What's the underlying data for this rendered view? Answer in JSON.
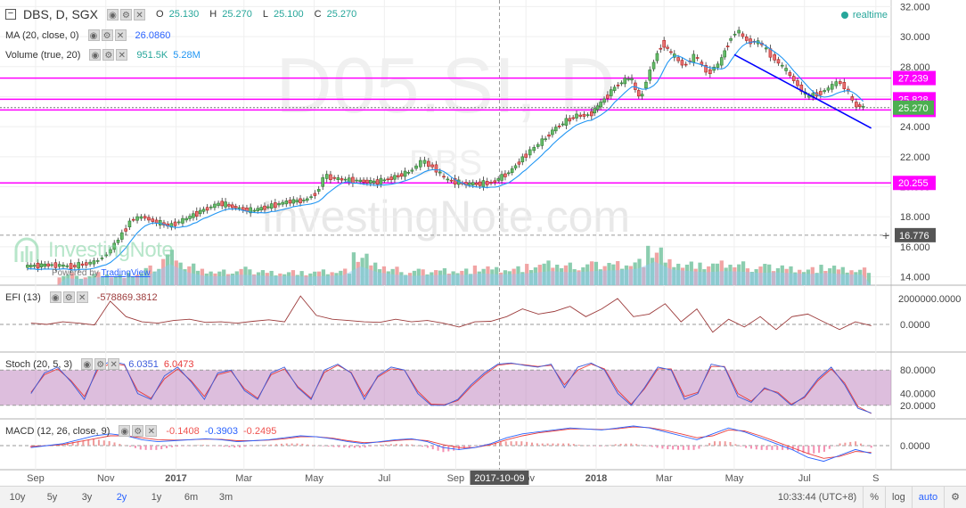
{
  "header": {
    "symbol": "DBS, D, SGX",
    "open_label": "O",
    "open": "25.130",
    "high_label": "H",
    "high": "25.270",
    "low_label": "L",
    "low": "25.100",
    "close_label": "C",
    "close": "25.270",
    "realtime": "realtime"
  },
  "indicators": {
    "ma": {
      "name": "MA (20, close, 0)",
      "value": "26.0860"
    },
    "volume": {
      "name": "Volume (true, 20)",
      "value1": "951.5K",
      "value2": "5.28M"
    },
    "efi": {
      "name": "EFI (13)",
      "value": "-578869.3812"
    },
    "stoch": {
      "name": "Stoch (20, 5, 3)",
      "value1": "6.0351",
      "value2": "6.0473"
    },
    "macd": {
      "name": "MACD (12, 26, close, 9)",
      "value1": "-0.1408",
      "value2": "-0.3903",
      "value3": "-0.2495"
    }
  },
  "watermark": {
    "ticker": "D05.SI, D",
    "company": "DBS",
    "site": "InvestingNote.com",
    "brand": "InvestingNote",
    "powered_by": "Powered by",
    "tradingview": "TradingView"
  },
  "crosshair": {
    "date_label": "2017-10-09",
    "price_label": "16.776"
  },
  "colors": {
    "up": "#26a69a",
    "down": "#ef5350",
    "magenta": "#ff00ff",
    "ma": "#2196f3",
    "trend": "#0000ff",
    "efi": "#9c3b3b",
    "stoch_k": "#3b5bdb",
    "stoch_d": "#e83b3b"
  },
  "chart_data": [
    {
      "type": "candlestick",
      "title": "DBS, D, SGX",
      "y_ticks": [
        "14.000",
        "16.000",
        "18.000",
        "20.000",
        "22.000",
        "24.000",
        "26.000",
        "28.000",
        "30.000",
        "32.000"
      ],
      "ylim": [
        13.8,
        32.2
      ],
      "x_ticks": [
        "Sep",
        "Nov",
        "2017",
        "Mar",
        "May",
        "Jul",
        "Sep",
        "Nov",
        "2018",
        "Mar",
        "May",
        "Jul",
        "S"
      ],
      "price_series": [
        [
          "2016-08-25",
          14.7
        ],
        [
          "2016-09-15",
          14.8
        ],
        [
          "2016-10-05",
          14.7
        ],
        [
          "2016-10-25",
          15.0
        ],
        [
          "2016-11-05",
          15.6
        ],
        [
          "2016-11-15",
          16.6
        ],
        [
          "2016-11-25",
          17.8
        ],
        [
          "2016-12-05",
          18.0
        ],
        [
          "2016-12-15",
          17.7
        ],
        [
          "2016-12-28",
          17.4
        ],
        [
          "2017-01-10",
          17.8
        ],
        [
          "2017-01-25",
          18.4
        ],
        [
          "2017-02-10",
          18.9
        ],
        [
          "2017-02-25",
          18.6
        ],
        [
          "2017-03-10",
          18.4
        ],
        [
          "2017-03-25",
          18.7
        ],
        [
          "2017-04-10",
          19.0
        ],
        [
          "2017-04-25",
          19.1
        ],
        [
          "2017-05-05",
          19.6
        ],
        [
          "2017-05-12",
          20.7
        ],
        [
          "2017-05-25",
          20.5
        ],
        [
          "2017-06-10",
          20.4
        ],
        [
          "2017-06-25",
          20.3
        ],
        [
          "2017-07-10",
          20.6
        ],
        [
          "2017-07-25",
          21.0
        ],
        [
          "2017-08-05",
          21.7
        ],
        [
          "2017-08-15",
          21.3
        ],
        [
          "2017-08-25",
          20.5
        ],
        [
          "2017-09-10",
          20.2
        ],
        [
          "2017-09-25",
          20.2
        ],
        [
          "2017-10-05",
          20.3
        ],
        [
          "2017-10-20",
          21.0
        ],
        [
          "2017-11-01",
          22.0
        ],
        [
          "2017-11-15",
          22.9
        ],
        [
          "2017-11-30",
          24.0
        ],
        [
          "2017-12-15",
          24.7
        ],
        [
          "2017-12-28",
          24.8
        ],
        [
          "2018-01-05",
          25.4
        ],
        [
          "2018-01-20",
          26.7
        ],
        [
          "2018-02-01",
          27.3
        ],
        [
          "2018-02-10",
          25.9
        ],
        [
          "2018-02-20",
          27.9
        ],
        [
          "2018-03-01",
          29.6
        ],
        [
          "2018-03-10",
          28.8
        ],
        [
          "2018-03-20",
          28.1
        ],
        [
          "2018-03-30",
          28.7
        ],
        [
          "2018-04-10",
          27.6
        ],
        [
          "2018-04-20",
          28.2
        ],
        [
          "2018-04-28",
          29.7
        ],
        [
          "2018-05-05",
          30.4
        ],
        [
          "2018-05-15",
          29.7
        ],
        [
          "2018-05-25",
          29.6
        ],
        [
          "2018-06-05",
          28.7
        ],
        [
          "2018-06-15",
          27.9
        ],
        [
          "2018-06-25",
          27.0
        ],
        [
          "2018-07-05",
          26.0
        ],
        [
          "2018-07-15",
          26.2
        ],
        [
          "2018-07-25",
          26.6
        ],
        [
          "2018-08-01",
          27.0
        ],
        [
          "2018-08-08",
          26.6
        ],
        [
          "2018-08-15",
          25.5
        ],
        [
          "2018-08-24",
          25.27
        ]
      ],
      "horizontal_levels": [
        {
          "value": 27.239,
          "label": "27.239"
        },
        {
          "value": 25.828,
          "label": "25.828"
        },
        {
          "value": 25.114,
          "label": "25.114"
        },
        {
          "value": 20.255,
          "label": "20.255"
        }
      ],
      "last_price": {
        "value": 25.27,
        "label": "25.270"
      },
      "trendline": [
        [
          "2018-05-01",
          28.8
        ],
        [
          "2018-08-28",
          23.9
        ]
      ]
    },
    {
      "type": "bar",
      "title": "Volume (true, 20)",
      "values_relative": [
        0.3,
        0.25,
        0.35,
        0.28,
        0.32,
        0.5,
        0.9,
        0.55,
        0.4,
        0.38,
        0.45,
        0.42,
        0.38,
        0.4,
        0.36,
        0.4,
        0.42,
        0.8,
        0.55,
        0.45,
        0.4,
        0.42,
        0.45,
        0.44,
        0.5,
        0.46,
        0.48,
        0.52,
        0.6,
        0.55,
        0.58,
        0.62,
        0.64,
        0.7,
        1.0,
        0.66,
        0.6,
        0.55,
        0.6,
        0.58,
        0.52,
        0.55,
        0.5,
        0.48,
        0.52,
        0.46,
        0.45
      ]
    },
    {
      "type": "line",
      "title": "EFI (13)",
      "y_ticks": [
        "0.0000",
        "2000000.0000"
      ],
      "values": [
        0.05,
        0.0,
        0.1,
        0.05,
        -0.02,
        0.9,
        0.3,
        0.1,
        0.05,
        0.15,
        0.2,
        0.08,
        0.1,
        0.05,
        0.12,
        0.18,
        0.1,
        1.1,
        0.35,
        0.2,
        0.15,
        0.1,
        0.08,
        0.2,
        0.1,
        0.15,
        0.05,
        -0.1,
        0.1,
        0.12,
        0.3,
        0.6,
        0.4,
        0.5,
        0.7,
        0.3,
        0.6,
        1.0,
        0.3,
        0.4,
        0.8,
        0.1,
        0.6,
        -0.3,
        0.2,
        -0.1,
        0.3,
        -0.2,
        0.3,
        0.4,
        0.1,
        -0.2,
        0.1,
        -0.05
      ]
    },
    {
      "type": "line",
      "title": "Stoch (20, 5, 3)",
      "y_ticks": [
        "20.0000",
        "40.0000",
        "80.0000"
      ],
      "ylim": [
        0,
        100
      ],
      "band": [
        20,
        80
      ],
      "k_values": [
        40,
        75,
        85,
        60,
        30,
        85,
        95,
        90,
        40,
        30,
        70,
        85,
        60,
        30,
        75,
        80,
        45,
        30,
        75,
        85,
        50,
        30,
        80,
        90,
        75,
        30,
        70,
        85,
        80,
        40,
        20,
        20,
        30,
        55,
        75,
        90,
        92,
        88,
        85,
        90,
        50,
        85,
        92,
        80,
        40,
        20,
        50,
        85,
        80,
        30,
        40,
        90,
        85,
        35,
        25,
        50,
        40,
        20,
        35,
        65,
        85,
        55,
        15,
        7
      ],
      "d_values": [
        42,
        72,
        82,
        62,
        35,
        80,
        92,
        88,
        45,
        32,
        65,
        82,
        62,
        35,
        72,
        78,
        48,
        32,
        72,
        82,
        52,
        32,
        76,
        88,
        76,
        35,
        68,
        82,
        80,
        44,
        22,
        21,
        28,
        52,
        72,
        88,
        91,
        89,
        86,
        88,
        55,
        80,
        90,
        82,
        45,
        22,
        48,
        82,
        82,
        35,
        42,
        86,
        86,
        40,
        27,
        48,
        42,
        22,
        33,
        62,
        82,
        58,
        18,
        6
      ]
    },
    {
      "type": "line",
      "title": "MACD (12, 26, close, 9)",
      "y_ticks": [
        "0.0000"
      ],
      "macd_values": [
        -0.1,
        0.0,
        0.1,
        0.3,
        0.5,
        0.6,
        0.5,
        0.3,
        0.2,
        0.25,
        0.3,
        0.35,
        0.3,
        0.2,
        0.25,
        0.3,
        0.4,
        0.5,
        0.45,
        0.35,
        0.2,
        0.1,
        0.2,
        0.3,
        0.35,
        0.2,
        -0.1,
        -0.2,
        -0.1,
        0.1,
        0.4,
        0.6,
        0.7,
        0.8,
        0.9,
        0.85,
        0.8,
        0.9,
        1.0,
        0.9,
        0.7,
        0.5,
        0.3,
        0.6,
        0.9,
        0.7,
        0.4,
        0.1,
        -0.2,
        -0.6,
        -0.8,
        -0.5,
        -0.2,
        -0.4
      ],
      "signal_values": [
        -0.05,
        0.0,
        0.05,
        0.2,
        0.35,
        0.5,
        0.5,
        0.4,
        0.3,
        0.28,
        0.3,
        0.33,
        0.32,
        0.25,
        0.25,
        0.28,
        0.35,
        0.45,
        0.45,
        0.38,
        0.25,
        0.15,
        0.18,
        0.26,
        0.32,
        0.25,
        0.05,
        -0.1,
        -0.1,
        0.05,
        0.3,
        0.5,
        0.65,
        0.75,
        0.85,
        0.85,
        0.82,
        0.86,
        0.95,
        0.92,
        0.78,
        0.6,
        0.4,
        0.5,
        0.8,
        0.75,
        0.5,
        0.2,
        -0.1,
        -0.4,
        -0.65,
        -0.55,
        -0.3,
        -0.35
      ]
    }
  ],
  "bottom_bar": {
    "timeframes": [
      "10y",
      "5y",
      "3y",
      "2y",
      "1y",
      "6m",
      "3m"
    ],
    "active": "2y",
    "clock": "10:33:44 (UTC+8)",
    "percent": "%",
    "log": "log",
    "auto": "auto"
  }
}
